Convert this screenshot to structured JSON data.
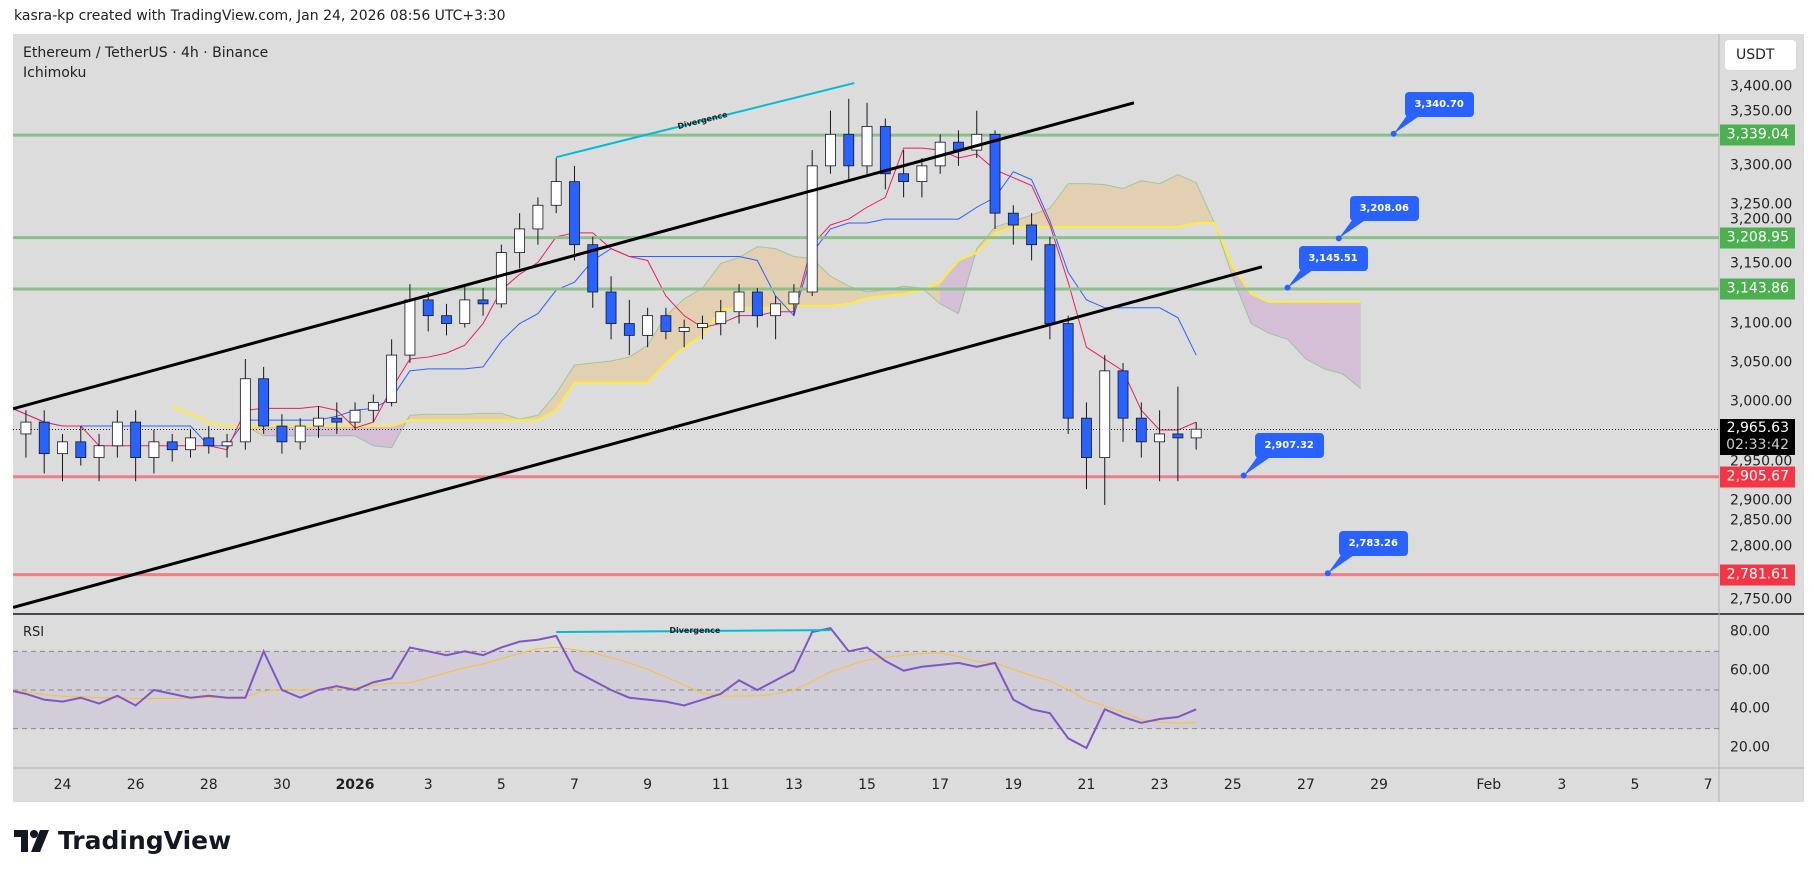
{
  "credit": "kasra-kp created with TradingView.com, Jan 24, 2026 08:56 UTC+3:30",
  "symbol_title": "Ethereum / TetherUS · 4h · Binance",
  "indicator_main": "Ichimoku",
  "indicator_sub": "RSI",
  "currency": "USDT",
  "brand": "TradingView",
  "colors": {
    "up": "#ffffff",
    "down": "#2962ff",
    "support": "#f23645",
    "resistance": "#4caf50",
    "tenkan": "#e91e63",
    "kijun": "#2962ff",
    "spanB": "#ffeb3b",
    "rsi": "#7e57c2",
    "rsi_ma": "#fbc02d"
  },
  "price_ticks": [
    "3,400.00",
    "3,350.00",
    "3,300.00",
    "3,250.00",
    "3,200.00",
    "3,150.00",
    "3,100.00",
    "3,050.00",
    "3,000.00",
    "2,950.00",
    "2,900.00",
    "2,850.00",
    "2,800.00",
    "2,750.00"
  ],
  "price_tick_values": [
    3400,
    3350,
    3300,
    3250,
    3200,
    3150,
    3100,
    3050,
    3000,
    2950,
    2900,
    2850,
    2800,
    2750
  ],
  "rsi_ticks": [
    "80.00",
    "60.00",
    "40.00",
    "20.00"
  ],
  "time_ticks": [
    {
      "label": "24",
      "day": 0
    },
    {
      "label": "26",
      "day": 2
    },
    {
      "label": "28",
      "day": 4
    },
    {
      "label": "30",
      "day": 6
    },
    {
      "label": "2026",
      "day": 8,
      "bold": true
    },
    {
      "label": "3",
      "day": 10
    },
    {
      "label": "5",
      "day": 12
    },
    {
      "label": "7",
      "day": 14
    },
    {
      "label": "9",
      "day": 16
    },
    {
      "label": "11",
      "day": 18
    },
    {
      "label": "13",
      "day": 20
    },
    {
      "label": "15",
      "day": 22
    },
    {
      "label": "17",
      "day": 24
    },
    {
      "label": "19",
      "day": 26
    },
    {
      "label": "21",
      "day": 28
    },
    {
      "label": "23",
      "day": 30
    },
    {
      "label": "25",
      "day": 32
    },
    {
      "label": "27",
      "day": 34
    },
    {
      "label": "29",
      "day": 36
    },
    {
      "label": "Feb",
      "day": 39
    },
    {
      "label": "3",
      "day": 41
    },
    {
      "label": "5",
      "day": 43
    },
    {
      "label": "7",
      "day": 45
    }
  ],
  "levels": [
    {
      "label": "3,339.04",
      "price": 3339.04,
      "kind": "resistance"
    },
    {
      "label": "3,208.95",
      "price": 3208.95,
      "kind": "resistance"
    },
    {
      "label": "3,143.86",
      "price": 3143.86,
      "kind": "resistance"
    },
    {
      "label": "2,905.67",
      "price": 2905.67,
      "kind": "support"
    },
    {
      "label": "2,781.61",
      "price": 2781.61,
      "kind": "support"
    }
  ],
  "current_price": {
    "label": "2,965.63",
    "price": 2965.63,
    "countdown": "02:33:42"
  },
  "callouts": [
    {
      "label": "3,340.70",
      "price": 3340.7,
      "day": 36.4
    },
    {
      "label": "3,208.06",
      "price": 3208.06,
      "day": 34.9
    },
    {
      "label": "3,145.51",
      "price": 3145.51,
      "day": 33.5
    },
    {
      "label": "2,907.32",
      "price": 2907.32,
      "day": 32.3
    },
    {
      "label": "2,783.26",
      "price": 2783.26,
      "day": 34.6
    }
  ],
  "annotations": {
    "divergence_price": "Divergence",
    "divergence_rsi": "Divergence"
  },
  "chart_data": {
    "type": "candlestick",
    "title": "Ethereum / TetherUS · 4h · Binance",
    "x_unit": "days since Dec 24, 2025",
    "start_day": -1.5,
    "bar_days": 0.5,
    "ylim": [
      2730,
      3420
    ],
    "candles": [
      [
        2990,
        3040,
        2950,
        2960
      ],
      [
        2960,
        2990,
        2930,
        2975
      ],
      [
        2975,
        2990,
        2910,
        2935
      ],
      [
        2935,
        2960,
        2900,
        2950
      ],
      [
        2950,
        2970,
        2920,
        2930
      ],
      [
        2930,
        2960,
        2900,
        2945
      ],
      [
        2945,
        2990,
        2930,
        2975
      ],
      [
        2975,
        2990,
        2900,
        2930
      ],
      [
        2930,
        2965,
        2910,
        2950
      ],
      [
        2950,
        2960,
        2925,
        2940
      ],
      [
        2940,
        2965,
        2930,
        2955
      ],
      [
        2955,
        2970,
        2935,
        2945
      ],
      [
        2945,
        2960,
        2930,
        2950
      ],
      [
        2950,
        3055,
        2940,
        3030
      ],
      [
        3030,
        3045,
        2960,
        2970
      ],
      [
        2970,
        2985,
        2935,
        2950
      ],
      [
        2950,
        2980,
        2940,
        2970
      ],
      [
        2970,
        2995,
        2955,
        2980
      ],
      [
        2980,
        3000,
        2960,
        2975
      ],
      [
        2975,
        3000,
        2965,
        2990
      ],
      [
        2990,
        3010,
        2975,
        3000
      ],
      [
        3000,
        3080,
        2995,
        3060
      ],
      [
        3060,
        3150,
        3050,
        3130
      ],
      [
        3130,
        3140,
        3090,
        3110
      ],
      [
        3110,
        3125,
        3085,
        3100
      ],
      [
        3100,
        3150,
        3095,
        3130
      ],
      [
        3130,
        3145,
        3110,
        3125
      ],
      [
        3125,
        3200,
        3120,
        3190
      ],
      [
        3190,
        3240,
        3170,
        3220
      ],
      [
        3220,
        3260,
        3200,
        3250
      ],
      [
        3250,
        3310,
        3240,
        3280
      ],
      [
        3280,
        3300,
        3180,
        3200
      ],
      [
        3200,
        3210,
        3120,
        3140
      ],
      [
        3140,
        3160,
        3080,
        3100
      ],
      [
        3100,
        3130,
        3060,
        3085
      ],
      [
        3085,
        3120,
        3070,
        3110
      ],
      [
        3110,
        3120,
        3080,
        3090
      ],
      [
        3090,
        3105,
        3070,
        3095
      ],
      [
        3095,
        3110,
        3080,
        3100
      ],
      [
        3100,
        3130,
        3085,
        3115
      ],
      [
        3115,
        3150,
        3100,
        3140
      ],
      [
        3140,
        3145,
        3095,
        3110
      ],
      [
        3110,
        3135,
        3080,
        3125
      ],
      [
        3125,
        3150,
        3110,
        3140
      ],
      [
        3140,
        3320,
        3135,
        3300
      ],
      [
        3300,
        3370,
        3290,
        3340
      ],
      [
        3340,
        3385,
        3280,
        3300
      ],
      [
        3300,
        3380,
        3290,
        3350
      ],
      [
        3350,
        3360,
        3270,
        3290
      ],
      [
        3290,
        3320,
        3260,
        3280
      ],
      [
        3280,
        3310,
        3260,
        3300
      ],
      [
        3300,
        3340,
        3290,
        3330
      ],
      [
        3330,
        3345,
        3300,
        3320
      ],
      [
        3320,
        3370,
        3310,
        3340
      ],
      [
        3340,
        3345,
        3220,
        3240
      ],
      [
        3240,
        3250,
        3200,
        3225
      ],
      [
        3225,
        3240,
        3180,
        3200
      ],
      [
        3200,
        3210,
        3080,
        3100
      ],
      [
        3100,
        3110,
        2960,
        2980
      ],
      [
        2980,
        3000,
        2890,
        2930
      ],
      [
        2930,
        3060,
        2870,
        3040
      ],
      [
        3040,
        3050,
        2950,
        2980
      ],
      [
        2980,
        3000,
        2930,
        2950
      ],
      [
        2950,
        2990,
        2900,
        2960
      ],
      [
        2960,
        3020,
        2900,
        2955
      ],
      [
        2955,
        2975,
        2940,
        2966
      ]
    ],
    "rsi": {
      "ylim": [
        10,
        85
      ],
      "bands": [
        30,
        50,
        70
      ],
      "values": [
        50,
        48,
        45,
        44,
        46,
        43,
        47,
        42,
        50,
        48,
        46,
        47,
        46,
        46,
        70,
        50,
        46,
        50,
        52,
        50,
        54,
        56,
        72,
        70,
        68,
        70,
        68,
        72,
        75,
        76,
        78,
        60,
        55,
        50,
        46,
        45,
        44,
        42,
        45,
        48,
        55,
        50,
        55,
        60,
        80,
        82,
        70,
        72,
        65,
        60,
        62,
        63,
        64,
        62,
        64,
        45,
        40,
        38,
        25,
        20,
        40,
        36,
        33,
        35,
        36,
        40
      ]
    },
    "trendlines": [
      {
        "name": "channel-upper",
        "from": {
          "day": -1.35,
          "price": 2992
        },
        "to": {
          "day": 29.3,
          "price": 3380
        }
      },
      {
        "name": "channel-lower",
        "from": {
          "day": -1.35,
          "price": 2740
        },
        "to": {
          "day": 32.8,
          "price": 3172
        }
      },
      {
        "name": "divergence-price",
        "from": {
          "day": 13.5,
          "price": 3311
        },
        "to": {
          "day": 21.65,
          "price": 3405
        }
      },
      {
        "name": "divergence-rsi",
        "from": {
          "day": 13.5,
          "rsi": 80
        },
        "to": {
          "day": 21.0,
          "rsi": 81
        }
      }
    ]
  }
}
